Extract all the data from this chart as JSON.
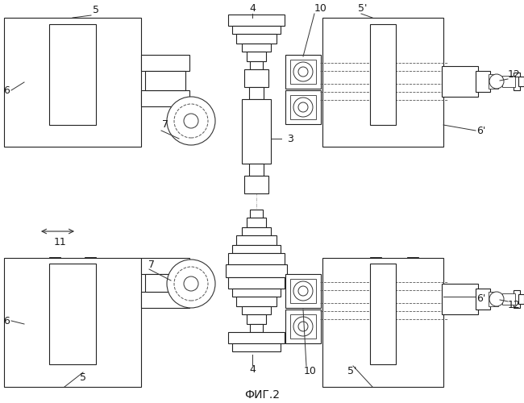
{
  "fig_label": "ФИГ.2",
  "bg_color": "#ffffff",
  "line_color": "#222222"
}
